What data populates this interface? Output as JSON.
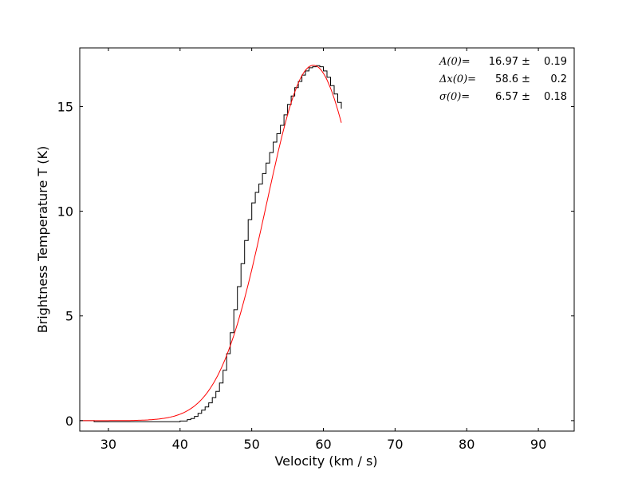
{
  "chart_data": {
    "type": "line",
    "title": "",
    "xlabel": "Velocity (km / s)",
    "ylabel": "Brightness Temperature T (K)",
    "xlim": [
      26,
      95
    ],
    "ylim": [
      -0.5,
      17.8
    ],
    "xticks": [
      "30",
      "40",
      "50",
      "60",
      "70",
      "80",
      "90"
    ],
    "yticks": [
      "0",
      "5",
      "10",
      "15"
    ],
    "grid": false,
    "annotations": [
      {
        "label": "A(0)=",
        "value": "16.97",
        "pm": "±",
        "err": "0.19"
      },
      {
        "label": "Δx(0)=",
        "value": "58.6",
        "pm": "±",
        "err": "0.2"
      },
      {
        "label": "σ(0)=",
        "value": "6.57",
        "pm": "±",
        "err": "0.18"
      }
    ],
    "series": [
      {
        "style": "step",
        "color": "#000000",
        "x": [
          26,
          27,
          28,
          29,
          30,
          31,
          32,
          33,
          34,
          35,
          36,
          37,
          38,
          39,
          40,
          41,
          41.5,
          42,
          42.5,
          43,
          43.5,
          44,
          44.5,
          45,
          45.5,
          46,
          46.5,
          47,
          47.5,
          48,
          48.5,
          49,
          49.5,
          50,
          50.5,
          51,
          51.5,
          52,
          52.5,
          53,
          53.5,
          54,
          54.5,
          55,
          55.5,
          56,
          56.5,
          57,
          57.5,
          58,
          58.5,
          59,
          59.5,
          60,
          60.5,
          61,
          61.5,
          62,
          62.5
        ],
        "y": [
          0,
          0,
          -0.05,
          -0.05,
          -0.05,
          -0.05,
          -0.05,
          -0.05,
          -0.05,
          -0.05,
          -0.05,
          -0.05,
          -0.05,
          -0.05,
          -0.02,
          0.05,
          0.1,
          0.2,
          0.35,
          0.5,
          0.65,
          0.85,
          1.1,
          1.4,
          1.8,
          2.4,
          3.2,
          4.2,
          5.3,
          6.4,
          7.5,
          8.6,
          9.6,
          10.4,
          10.9,
          11.3,
          11.8,
          12.3,
          12.8,
          13.3,
          13.7,
          14.1,
          14.6,
          15.1,
          15.5,
          15.9,
          16.2,
          16.5,
          16.7,
          16.85,
          16.9,
          16.95,
          16.9,
          16.7,
          16.4,
          16.0,
          15.6,
          15.2,
          14.9
        ]
      },
      {
        "style": "line",
        "color": "#ff0000",
        "model": "gaussian",
        "amplitude": 16.97,
        "center": 58.6,
        "sigma": 6.57,
        "x_range": [
          26,
          62.5
        ]
      }
    ]
  }
}
